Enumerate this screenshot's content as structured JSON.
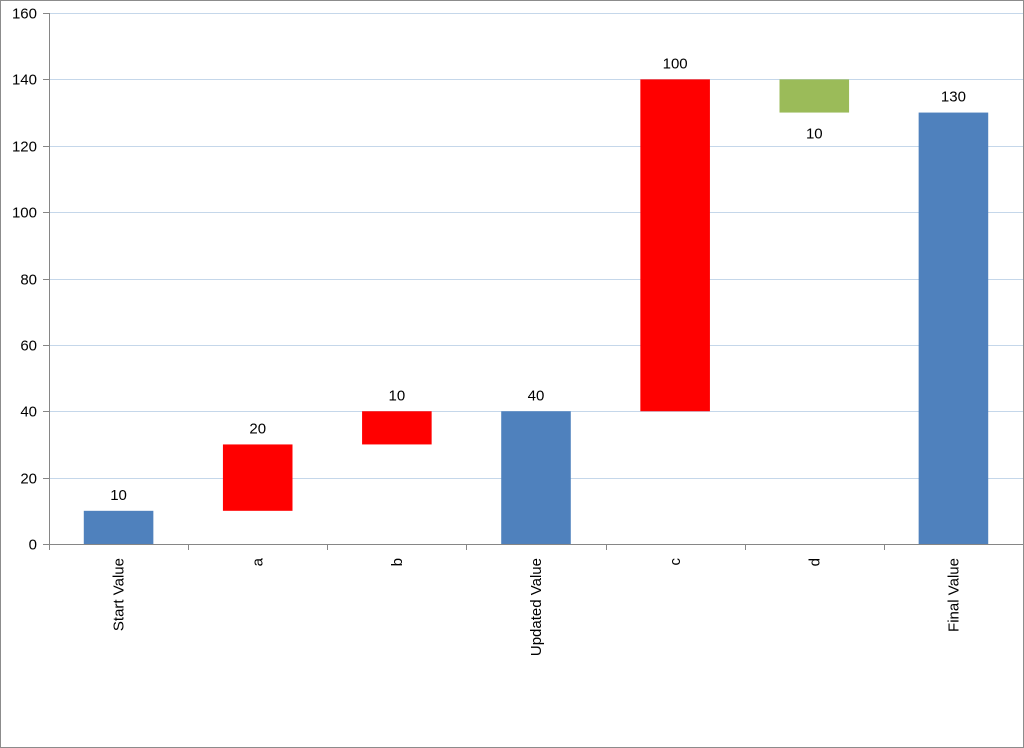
{
  "chart_data": {
    "type": "bar",
    "subtype": "waterfall",
    "categories": [
      "Start Value",
      "a",
      "b",
      "Updated Value",
      "c",
      "d",
      "Final Value"
    ],
    "bars": [
      {
        "category": "Start Value",
        "base": 0,
        "top": 10,
        "label": "10",
        "kind": "total"
      },
      {
        "category": "a",
        "base": 10,
        "top": 30,
        "label": "20",
        "kind": "increase"
      },
      {
        "category": "b",
        "base": 30,
        "top": 40,
        "label": "10",
        "kind": "increase"
      },
      {
        "category": "Updated Value",
        "base": 0,
        "top": 40,
        "label": "40",
        "kind": "total"
      },
      {
        "category": "c",
        "base": 40,
        "top": 140,
        "label": "100",
        "kind": "increase"
      },
      {
        "category": "d",
        "base": 130,
        "top": 140,
        "label": "10",
        "kind": "decrease"
      },
      {
        "category": "Final Value",
        "base": 0,
        "top": 130,
        "label": "130",
        "kind": "total"
      }
    ],
    "ylim": [
      0,
      160
    ],
    "yticks": [
      0,
      20,
      40,
      60,
      80,
      100,
      120,
      140,
      160
    ],
    "grid": true,
    "legend": "none",
    "colors": {
      "total": "#4f81bd",
      "increase": "#ff0000",
      "decrease": "#9bbb59"
    }
  }
}
